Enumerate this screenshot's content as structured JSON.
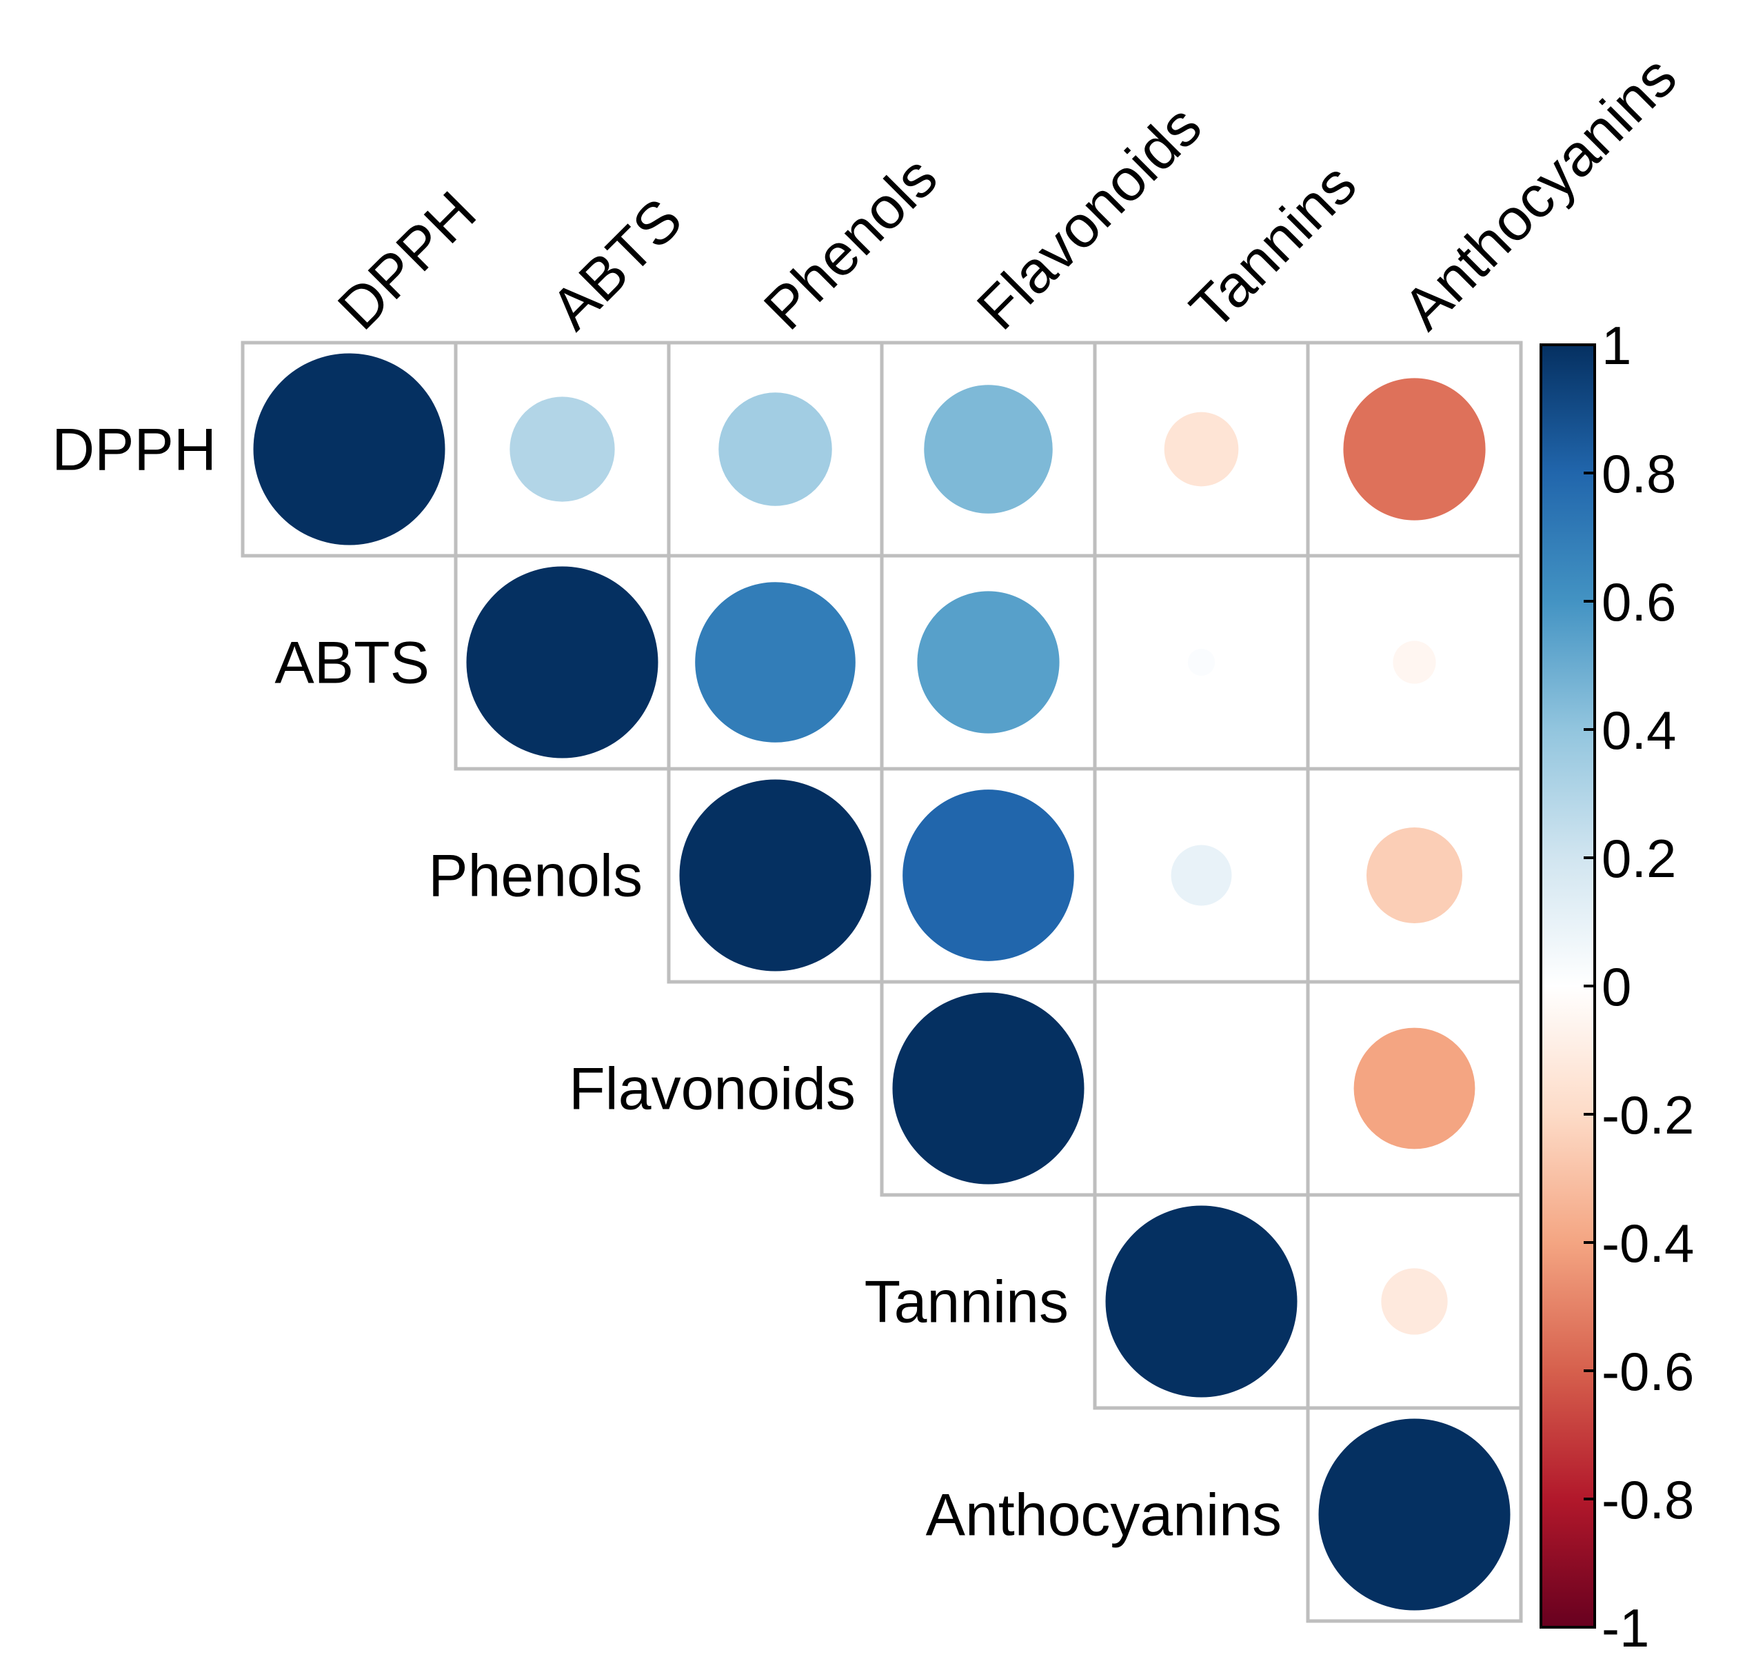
{
  "chart_data": {
    "type": "heatmap",
    "subtype": "correlation-circle-upper",
    "variables": [
      "DPPH",
      "ABTS",
      "Phenols",
      "Flavonoids",
      "Tannins",
      "Anthocyanins"
    ],
    "matrix": [
      [
        1.0,
        0.3,
        0.35,
        0.45,
        -0.15,
        -0.55
      ],
      [
        0.3,
        1.0,
        0.7,
        0.55,
        0.02,
        -0.05
      ],
      [
        0.35,
        0.7,
        1.0,
        0.8,
        0.1,
        -0.25
      ],
      [
        0.45,
        0.55,
        0.8,
        1.0,
        0.0,
        -0.4
      ],
      [
        -0.15,
        0.02,
        0.1,
        0.0,
        1.0,
        -0.12
      ],
      [
        -0.55,
        -0.05,
        -0.25,
        -0.4,
        -0.12,
        1.0
      ]
    ],
    "colorbar": {
      "min": -1,
      "max": 1,
      "ticks": [
        "1",
        "0.8",
        "0.6",
        "0.4",
        "0.2",
        "0",
        "-0.2",
        "-0.4",
        "-0.6",
        "-0.8",
        "-1"
      ],
      "colors": [
        "#67001F",
        "#B2182B",
        "#D6604D",
        "#F4A582",
        "#FDDBC7",
        "#FFFFFF",
        "#D1E5F0",
        "#92C5DE",
        "#4393C3",
        "#2166AC",
        "#053061"
      ]
    }
  }
}
